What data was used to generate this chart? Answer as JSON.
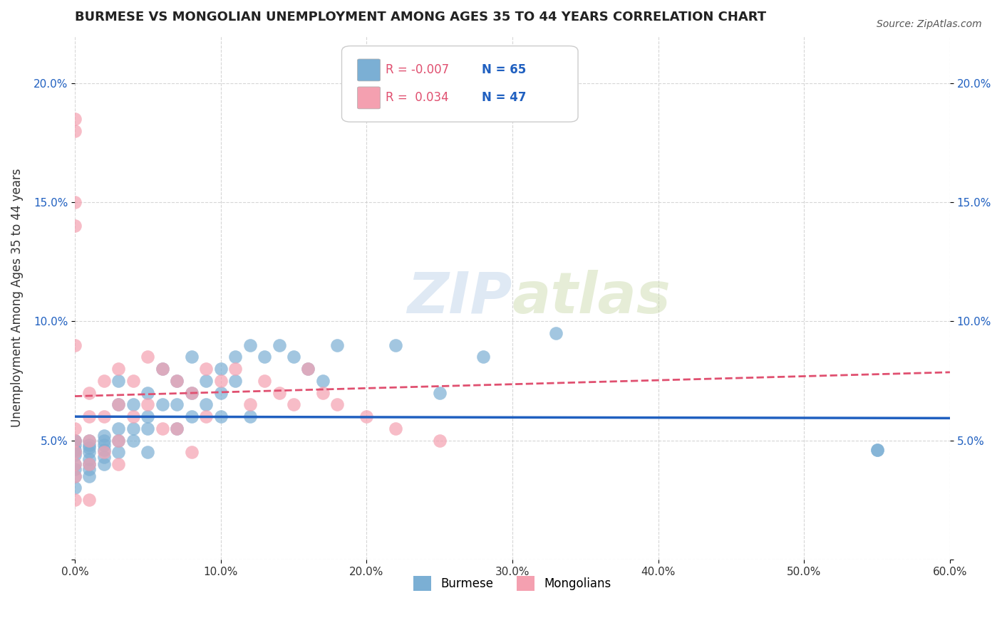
{
  "title": "BURMESE VS MONGOLIAN UNEMPLOYMENT AMONG AGES 35 TO 44 YEARS CORRELATION CHART",
  "source": "Source: ZipAtlas.com",
  "ylabel": "Unemployment Among Ages 35 to 44 years",
  "xlabel": "",
  "xlim": [
    0.0,
    0.6
  ],
  "ylim": [
    0.0,
    0.22
  ],
  "xticks": [
    0.0,
    0.1,
    0.2,
    0.3,
    0.4,
    0.5,
    0.6
  ],
  "xtick_labels": [
    "0.0%",
    "10.0%",
    "20.0%",
    "30.0%",
    "40.0%",
    "50.0%",
    "60.0%"
  ],
  "ytick_labels_left": [
    "",
    "5.0%",
    "10.0%",
    "15.0%",
    "20.0%"
  ],
  "ytick_labels_right": [
    "",
    "5.0%",
    "10.0%",
    "15.0%",
    "20.0%"
  ],
  "yticks": [
    0.0,
    0.05,
    0.1,
    0.15,
    0.2
  ],
  "grid_color": "#cccccc",
  "background_color": "#ffffff",
  "burmese_color": "#7bafd4",
  "mongolian_color": "#f4a0b0",
  "burmese_line_color": "#2060c0",
  "mongolian_line_color": "#e05070",
  "legend_R_burmese": "-0.007",
  "legend_N_burmese": "65",
  "legend_R_mongolian": "0.034",
  "legend_N_mongolian": "47",
  "watermark_zip": "ZIP",
  "watermark_atlas": "atlas",
  "burmese_x": [
    0.0,
    0.0,
    0.0,
    0.0,
    0.0,
    0.0,
    0.0,
    0.0,
    0.0,
    0.0,
    0.01,
    0.01,
    0.01,
    0.01,
    0.01,
    0.01,
    0.01,
    0.01,
    0.02,
    0.02,
    0.02,
    0.02,
    0.02,
    0.02,
    0.03,
    0.03,
    0.03,
    0.03,
    0.03,
    0.04,
    0.04,
    0.04,
    0.05,
    0.05,
    0.05,
    0.05,
    0.06,
    0.06,
    0.07,
    0.07,
    0.07,
    0.08,
    0.08,
    0.08,
    0.09,
    0.09,
    0.1,
    0.1,
    0.1,
    0.11,
    0.11,
    0.12,
    0.12,
    0.13,
    0.14,
    0.15,
    0.16,
    0.17,
    0.18,
    0.22,
    0.25,
    0.28,
    0.33,
    0.55,
    0.55
  ],
  "burmese_y": [
    0.045,
    0.05,
    0.05,
    0.048,
    0.046,
    0.044,
    0.04,
    0.038,
    0.035,
    0.03,
    0.05,
    0.048,
    0.047,
    0.045,
    0.042,
    0.04,
    0.038,
    0.035,
    0.052,
    0.05,
    0.048,
    0.046,
    0.043,
    0.04,
    0.075,
    0.065,
    0.055,
    0.05,
    0.045,
    0.065,
    0.055,
    0.05,
    0.07,
    0.06,
    0.055,
    0.045,
    0.08,
    0.065,
    0.075,
    0.065,
    0.055,
    0.085,
    0.07,
    0.06,
    0.075,
    0.065,
    0.08,
    0.07,
    0.06,
    0.085,
    0.075,
    0.09,
    0.06,
    0.085,
    0.09,
    0.085,
    0.08,
    0.075,
    0.09,
    0.09,
    0.07,
    0.085,
    0.095,
    0.046,
    0.046
  ],
  "mongolian_x": [
    0.0,
    0.0,
    0.0,
    0.0,
    0.0,
    0.0,
    0.0,
    0.0,
    0.0,
    0.0,
    0.0,
    0.01,
    0.01,
    0.01,
    0.01,
    0.01,
    0.02,
    0.02,
    0.02,
    0.03,
    0.03,
    0.03,
    0.03,
    0.04,
    0.04,
    0.05,
    0.05,
    0.06,
    0.06,
    0.07,
    0.07,
    0.08,
    0.08,
    0.09,
    0.09,
    0.1,
    0.11,
    0.12,
    0.13,
    0.14,
    0.15,
    0.16,
    0.17,
    0.18,
    0.2,
    0.22,
    0.25
  ],
  "mongolian_y": [
    0.185,
    0.18,
    0.15,
    0.14,
    0.09,
    0.055,
    0.05,
    0.045,
    0.04,
    0.035,
    0.025,
    0.07,
    0.06,
    0.05,
    0.04,
    0.025,
    0.075,
    0.06,
    0.045,
    0.08,
    0.065,
    0.05,
    0.04,
    0.075,
    0.06,
    0.085,
    0.065,
    0.08,
    0.055,
    0.075,
    0.055,
    0.07,
    0.045,
    0.08,
    0.06,
    0.075,
    0.08,
    0.065,
    0.075,
    0.07,
    0.065,
    0.08,
    0.07,
    0.065,
    0.06,
    0.055,
    0.05
  ]
}
